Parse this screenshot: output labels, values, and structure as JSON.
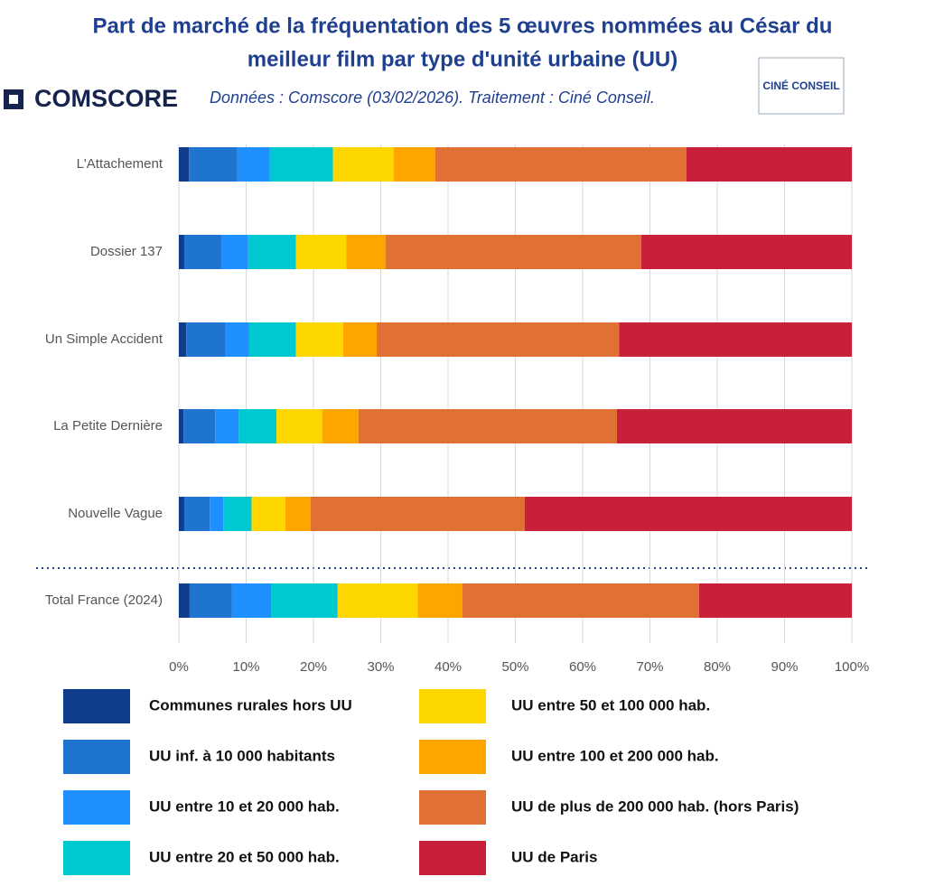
{
  "chart_data": {
    "type": "stacked_barh",
    "title": [
      "Part de marché de la fréquentation des 5 œuvres nommées au César du",
      "meilleur film par type d'unité urbaine (UU)"
    ],
    "subtitle": "Données : Comscore (03/02/2026). Traitement : Ciné Conseil.",
    "annotations": [
      "COMSCORE",
      "CINÉ CONSEIL"
    ],
    "categories": [
      "L'Attachement",
      "Dossier 137",
      "Un Simple Accident",
      "La Petite Dernière",
      "Nouvelle Vague",
      "Total France (2024)"
    ],
    "series": [
      {
        "name": "Communes rurales hors UU",
        "color": "#0f3d8c",
        "values": [
          1.5,
          0.8,
          1.1,
          0.7,
          0.8,
          1.6
        ]
      },
      {
        "name": "UU inf. à 10 000 habitants",
        "color": "#1f74cf",
        "values": [
          7.2,
          5.5,
          5.8,
          4.7,
          3.8,
          6.3
        ]
      },
      {
        "name": "UU entre 10 et 20 000 hab.",
        "color": "#1e90ff",
        "values": [
          4.8,
          4.0,
          3.5,
          3.5,
          2.0,
          5.8
        ]
      },
      {
        "name": "UU entre 20 et 50 000 hab.",
        "color": "#00c8d0",
        "values": [
          9.4,
          7.1,
          7.0,
          5.6,
          4.2,
          9.9
        ]
      },
      {
        "name": "UU entre 50 et 100 000 hab.",
        "color": "#ffd700",
        "values": [
          9.0,
          7.5,
          7.0,
          6.8,
          5.0,
          11.9
        ]
      },
      {
        "name": "UU entre 100 et 200 000 hab.",
        "color": "#ffa500",
        "values": [
          6.2,
          5.8,
          5.0,
          5.4,
          3.8,
          6.6
        ]
      },
      {
        "name": "UU de plus de 200 000 hab. (hors Paris)",
        "color": "#e07034",
        "values": [
          37.3,
          38.0,
          36.0,
          38.4,
          31.8,
          35.2
        ]
      },
      {
        "name": "UU de Paris",
        "color": "#c8203a",
        "values": [
          24.6,
          31.3,
          34.6,
          34.9,
          48.6,
          22.7
        ]
      }
    ],
    "xlim": [
      0,
      100
    ],
    "xticks": [
      {
        "value": 0,
        "label": "0%"
      },
      {
        "value": 10,
        "label": "10%"
      },
      {
        "value": 20,
        "label": "20%"
      },
      {
        "value": 30,
        "label": "30%"
      },
      {
        "value": 40,
        "label": "40%"
      },
      {
        "value": 50,
        "label": "50%"
      },
      {
        "value": 60,
        "label": "60%"
      },
      {
        "value": 70,
        "label": "70%"
      },
      {
        "value": 80,
        "label": "80%"
      },
      {
        "value": 90,
        "label": "90%"
      },
      {
        "value": 100,
        "label": "100%"
      }
    ],
    "grid": true
  }
}
